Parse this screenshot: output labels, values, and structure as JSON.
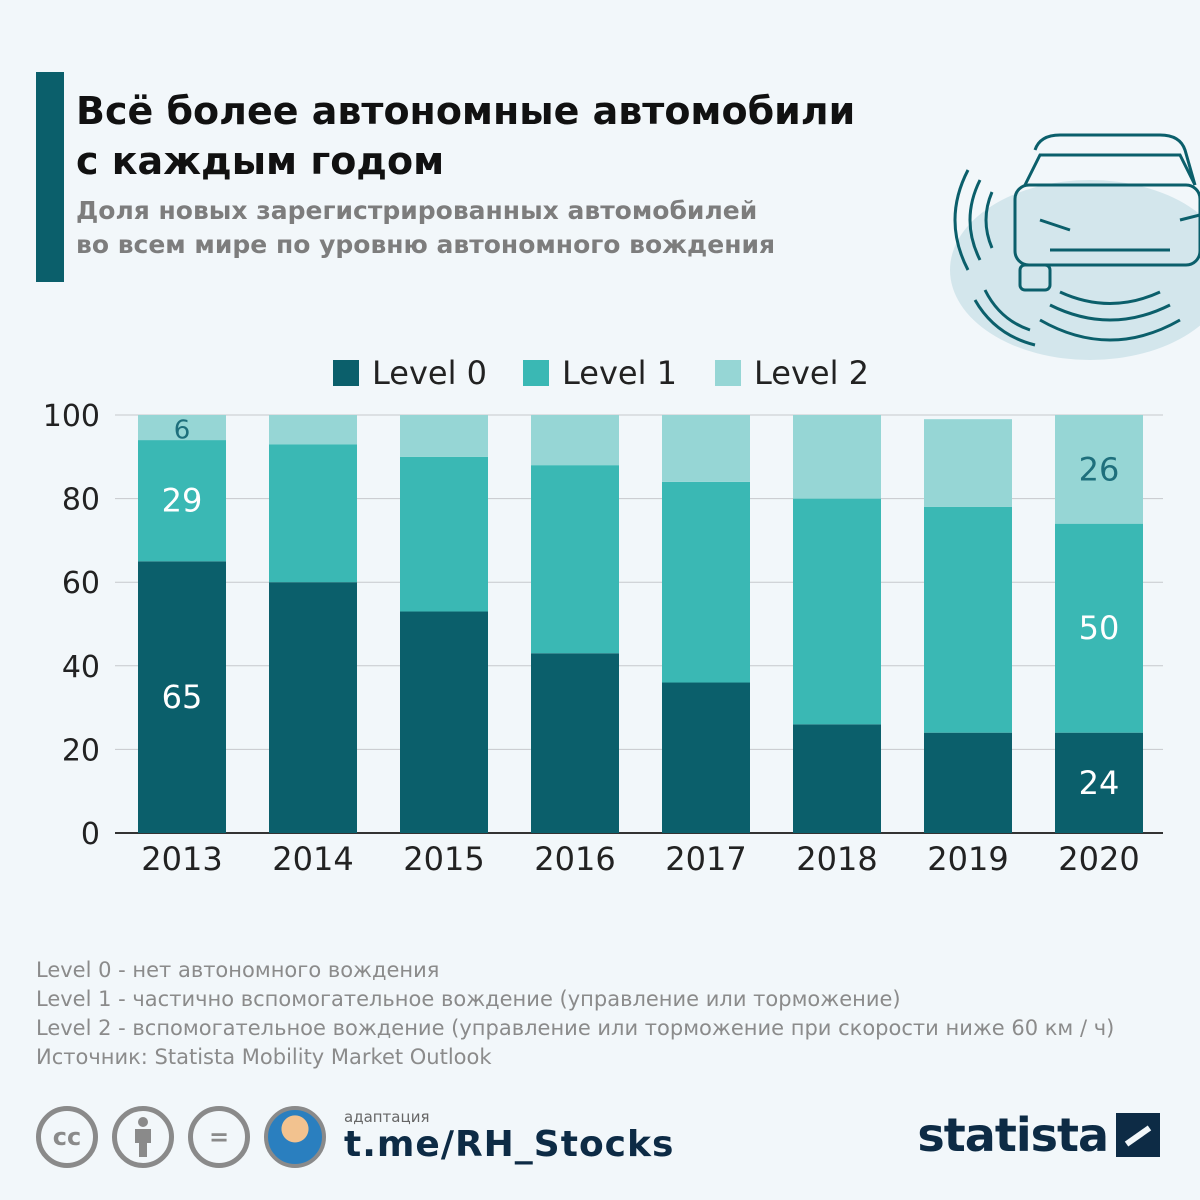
{
  "title": {
    "line1": "Всё более автономные автомобили",
    "line2": "с каждым годом"
  },
  "subtitle": {
    "line1": "Доля новых зарегистрированных автомобилей",
    "line2": "во всем мире по уровню автономного вождения"
  },
  "chart_data": {
    "type": "bar",
    "stacked": true,
    "categories": [
      "2013",
      "2014",
      "2015",
      "2016",
      "2017",
      "2018",
      "2019",
      "2020"
    ],
    "series": [
      {
        "name": "Level 0",
        "color": "#0b5f6b",
        "values": [
          65,
          60,
          53,
          43,
          36,
          26,
          24,
          24
        ]
      },
      {
        "name": "Level 1",
        "color": "#3ab8b4",
        "values": [
          29,
          33,
          37,
          45,
          48,
          54,
          54,
          50
        ]
      },
      {
        "name": "Level 2",
        "color": "#96d6d5",
        "values": [
          6,
          7,
          10,
          12,
          16,
          20,
          21,
          26
        ]
      }
    ],
    "data_labels": [
      {
        "category": "2013",
        "series": 0,
        "text": "65"
      },
      {
        "category": "2013",
        "series": 1,
        "text": "29"
      },
      {
        "category": "2013",
        "series": 2,
        "text": "6"
      },
      {
        "category": "2020",
        "series": 0,
        "text": "24"
      },
      {
        "category": "2020",
        "series": 1,
        "text": "50"
      },
      {
        "category": "2020",
        "series": 2,
        "text": "26"
      }
    ],
    "yticks": [
      "0",
      "20",
      "40",
      "60",
      "80",
      "100"
    ],
    "ylim": [
      0,
      100
    ],
    "grid": true,
    "legend": "top-center",
    "xlabel": "",
    "ylabel": ""
  },
  "notes": [
    "Level 0 - нет автономного вождения",
    "Level 1 - частично вспомогательное вождение (управление или торможение)",
    "Level 2 - вспомогательное вождение (управление или торможение при скорости ниже 60 км / ч)",
    "Источник: Statista Mobility Market Outlook"
  ],
  "footer": {
    "adapt_label": "адаптация",
    "channel": "t.me/RH_Stocks",
    "cc": "cc",
    "equals": "=",
    "brand": "statista"
  }
}
